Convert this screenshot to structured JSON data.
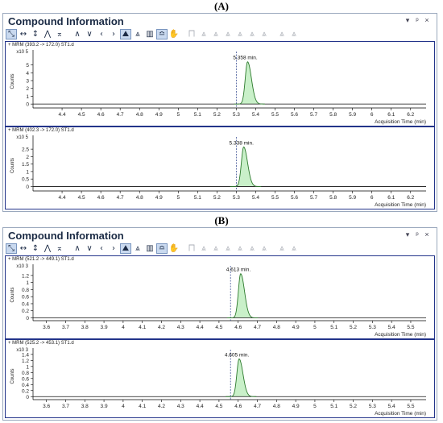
{
  "captions": [
    "(A)",
    "(B)"
  ],
  "windows": [
    {
      "title": "Compound Information",
      "controls": [
        "▾",
        "ᵖ",
        "×"
      ],
      "panels": [
        {
          "label": "+ MRM (393.2 -> 172.0) ST1.d",
          "exponent": "x10 5",
          "ylabel": "Counts",
          "xlabel": "Acquisition Time (min)",
          "peak_label": "5.358 min.",
          "chart_data": {
            "type": "line",
            "peak_center": 5.358,
            "peak_height": 5.4,
            "peak_sigma": 0.012,
            "tail": 0.008,
            "marker_x": 5.3,
            "xlim": [
              4.25,
              6.28
            ],
            "ylim": [
              -0.5,
              6.3
            ],
            "xticks": [
              4.4,
              4.5,
              4.6,
              4.7,
              4.8,
              4.9,
              5,
              5.1,
              5.2,
              5.3,
              5.4,
              5.5,
              5.6,
              5.7,
              5.8,
              5.9,
              6,
              6.1,
              6.2
            ],
            "xticklabels": [
              "4.4",
              "4.5",
              "4.6",
              "4.7",
              "4.8",
              "4.9",
              "5",
              "5.1",
              "5.2",
              "5.3",
              "5.4",
              "5.5",
              "5.6",
              "5.7",
              "5.8",
              "5.9",
              "6",
              "6.1",
              "6.2"
            ],
            "yticks": [
              0,
              1,
              2,
              3,
              4,
              5
            ],
            "yticklabels": [
              "0",
              "1",
              "2",
              "3",
              "4",
              "5"
            ]
          }
        },
        {
          "label": "+ MRM (402.3 -> 172.0) ST1.d",
          "exponent": "x10 5",
          "ylabel": "Counts",
          "xlabel": "Acquisition Time (min)",
          "peak_label": "5.338 min.",
          "chart_data": {
            "type": "line",
            "peak_center": 5.338,
            "peak_height": 2.65,
            "peak_sigma": 0.012,
            "tail": 0.008,
            "marker_x": 5.3,
            "xlim": [
              4.25,
              6.28
            ],
            "ylim": [
              -0.3,
              3.1
            ],
            "xticks": [
              4.4,
              4.5,
              4.6,
              4.7,
              4.8,
              4.9,
              5,
              5.1,
              5.2,
              5.3,
              5.4,
              5.5,
              5.6,
              5.7,
              5.8,
              5.9,
              6,
              6.1,
              6.2
            ],
            "xticklabels": [
              "4.4",
              "4.5",
              "4.6",
              "4.7",
              "4.8",
              "4.9",
              "5",
              "5.1",
              "5.2",
              "5.3",
              "5.4",
              "5.5",
              "5.6",
              "5.7",
              "5.8",
              "5.9",
              "6",
              "6.1",
              "6.2"
            ],
            "yticks": [
              0,
              0.5,
              1,
              1.5,
              2,
              2.5
            ],
            "yticklabels": [
              "0",
              "0.5",
              "1",
              "1.5",
              "2",
              "2.5"
            ]
          }
        }
      ]
    },
    {
      "title": "Compound Information",
      "controls": [
        "▾",
        "ᵖ",
        "×"
      ],
      "panels": [
        {
          "label": "+ MRM (521.2 -> 449.1) ST1.d",
          "exponent": "x10 3",
          "ylabel": "Counts",
          "xlabel": "Acquisition Time (min)",
          "peak_label": "4.613 min.",
          "chart_data": {
            "type": "line",
            "peak_center": 4.613,
            "peak_height": 1.25,
            "peak_sigma": 0.012,
            "tail": 0.008,
            "marker_x": 4.56,
            "xlim": [
              3.53,
              5.58
            ],
            "ylim": [
              -0.08,
              1.38
            ],
            "xticks": [
              3.6,
              3.7,
              3.8,
              3.9,
              4,
              4.1,
              4.2,
              4.3,
              4.4,
              4.5,
              4.6,
              4.7,
              4.8,
              4.9,
              5,
              5.1,
              5.2,
              5.3,
              5.4,
              5.5
            ],
            "xticklabels": [
              "3.6",
              "3.7",
              "3.8",
              "3.9",
              "4",
              "4.1",
              "4.2",
              "4.3",
              "4.4",
              "4.5",
              "4.6",
              "4.7",
              "4.8",
              "4.9",
              "5",
              "5.1",
              "5.2",
              "5.3",
              "5.4",
              "5.5"
            ],
            "yticks": [
              0,
              0.2,
              0.4,
              0.6,
              0.8,
              1,
              1.2
            ],
            "yticklabels": [
              "0",
              "0.2",
              "0.4",
              "0.6",
              "0.8",
              "1",
              "1.2"
            ]
          }
        },
        {
          "label": "+ MRM (525.2 -> 453.1) ST1.d",
          "exponent": "x10 3",
          "ylabel": "Counts",
          "xlabel": "Acquisition Time (min)",
          "peak_label": "4.605 min.",
          "chart_data": {
            "type": "line",
            "peak_center": 4.605,
            "peak_height": 1.25,
            "peak_sigma": 0.012,
            "tail": 0.008,
            "marker_x": 4.56,
            "xlim": [
              3.53,
              5.58
            ],
            "ylim": [
              -0.1,
              1.45
            ],
            "xticks": [
              3.6,
              3.7,
              3.8,
              3.9,
              4,
              4.1,
              4.2,
              4.3,
              4.4,
              4.5,
              4.6,
              4.7,
              4.8,
              4.9,
              5,
              5.1,
              5.2,
              5.3,
              5.4,
              5.5
            ],
            "xticklabels": [
              "3.6",
              "3.7",
              "3.8",
              "3.9",
              "4",
              "4.1",
              "4.2",
              "4.3",
              "4.4",
              "4.5",
              "4.6",
              "4.7",
              "4.8",
              "4.9",
              "5",
              "5.1",
              "5.2",
              "5.3",
              "5.4",
              "5.5"
            ],
            "yticks": [
              0,
              0.2,
              0.4,
              0.6,
              0.8,
              1,
              1.2,
              1.4
            ],
            "yticklabels": [
              "0",
              "0.2",
              "0.4",
              "0.6",
              "0.8",
              "1",
              "1.2",
              "1.4"
            ]
          }
        }
      ]
    }
  ],
  "toolbar_icons": [
    {
      "name": "select-mode-icon",
      "glyph": "⤡",
      "state": "active"
    },
    {
      "name": "auto-scale-x-icon",
      "glyph": "↔",
      "state": "normal"
    },
    {
      "name": "auto-scale-y-icon",
      "glyph": "↕",
      "state": "normal"
    },
    {
      "name": "peak-up-icon",
      "glyph": "⋀",
      "state": "normal"
    },
    {
      "name": "baseline-icon",
      "glyph": "⌅",
      "state": "normal"
    },
    {
      "name": "sep",
      "glyph": "",
      "state": "sep"
    },
    {
      "name": "expand-up-icon",
      "glyph": "∧",
      "state": "normal"
    },
    {
      "name": "expand-down-icon",
      "glyph": "∨",
      "state": "normal"
    },
    {
      "name": "previous-icon",
      "glyph": "‹",
      "state": "normal"
    },
    {
      "name": "next-icon",
      "glyph": "›",
      "state": "normal"
    },
    {
      "name": "chromatogram-icon",
      "glyph": "⛰",
      "state": "active"
    },
    {
      "name": "overlay-peaks-icon",
      "glyph": "⩓",
      "state": "normal"
    },
    {
      "name": "bar-chart-icon",
      "glyph": "▥",
      "state": "normal"
    },
    {
      "name": "integrate-icon",
      "glyph": "≏",
      "state": "active"
    },
    {
      "name": "hand-pan-icon",
      "glyph": "✋",
      "state": "normal"
    },
    {
      "name": "sep",
      "glyph": "",
      "state": "sep"
    },
    {
      "name": "peak-tool-1-icon",
      "glyph": "⨅",
      "state": "faded"
    },
    {
      "name": "peak-tool-2-icon",
      "glyph": "⩓",
      "state": "faded"
    },
    {
      "name": "peak-tool-3-icon",
      "glyph": "⩓",
      "state": "faded"
    },
    {
      "name": "peak-tool-4-icon",
      "glyph": "⩓",
      "state": "faded"
    },
    {
      "name": "peak-tool-5-icon",
      "glyph": "⩓",
      "state": "faded"
    },
    {
      "name": "peak-tool-6-icon",
      "glyph": "⩓",
      "state": "faded"
    },
    {
      "name": "peak-tool-7-icon",
      "glyph": "⩓",
      "state": "faded"
    },
    {
      "name": "sep",
      "glyph": "",
      "state": "sep"
    },
    {
      "name": "peak-tool-8-icon",
      "glyph": "⩓",
      "state": "faded"
    },
    {
      "name": "peak-tool-9-icon",
      "glyph": "⩓",
      "state": "faded"
    }
  ],
  "colors": {
    "peak_fill": "#c9f0c9",
    "peak_stroke": "#2c7a2c",
    "panel_border": "#23348a",
    "marker_line": "#2a3f8a"
  }
}
